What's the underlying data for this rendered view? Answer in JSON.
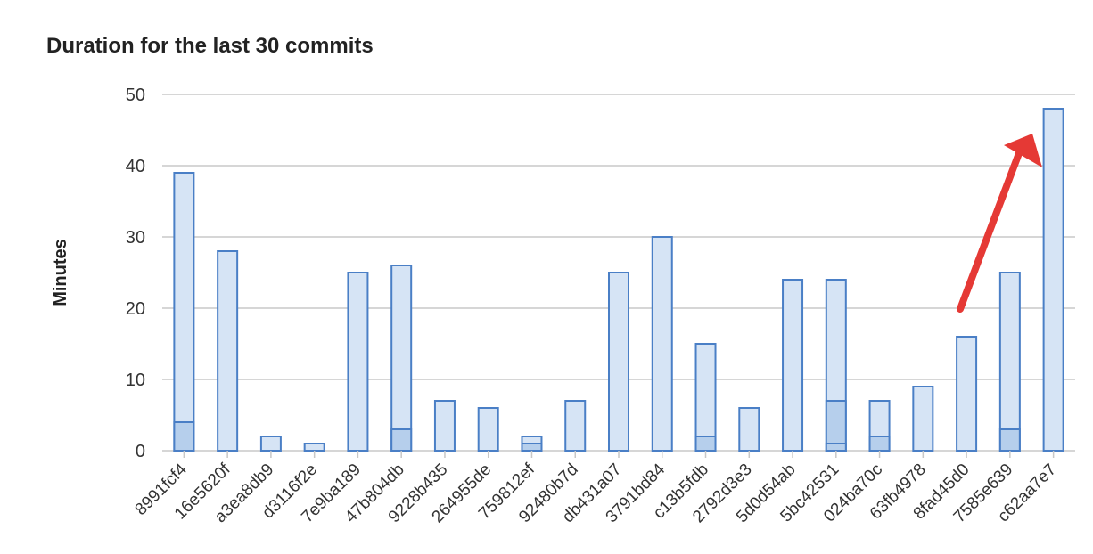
{
  "chart_data": {
    "type": "bar",
    "title": "Duration for the last 30 commits",
    "xlabel": "",
    "ylabel": "Minutes",
    "ylim": [
      0,
      50
    ],
    "yticks": [
      0,
      10,
      20,
      30,
      40,
      50
    ],
    "grid": true,
    "categories": [
      "8991fcf4",
      "16e5620f",
      "a3ea8db9",
      "d3116f2e",
      "7e9ba189",
      "47b804db",
      "9228b435",
      "264955de",
      "759812ef",
      "92480b7d",
      "db431a07",
      "3791bd84",
      "c13b5fdb",
      "2792d3e3",
      "5d0d54ab",
      "5bc42531",
      "024ba70c",
      "63fb4978",
      "8fad45d0",
      "7585e639",
      "c62aa7e7"
    ],
    "series": [
      {
        "values": [
          39,
          28,
          2,
          1,
          25,
          26,
          7,
          6,
          2,
          7,
          25,
          30,
          15,
          6,
          24,
          24,
          7,
          9,
          16,
          25,
          48
        ]
      },
      {
        "values": [
          4,
          0,
          0,
          0,
          0,
          3,
          0,
          0,
          1,
          0,
          0,
          0,
          2,
          0,
          0,
          7,
          2,
          0,
          0,
          3,
          0
        ]
      },
      {
        "values": [
          0,
          0,
          0,
          0,
          0,
          0,
          0,
          0,
          0,
          0,
          0,
          0,
          0,
          0,
          0,
          1,
          0,
          0,
          0,
          0,
          0
        ]
      }
    ],
    "colors": {
      "bar_fill": "#d6e4f5",
      "bar_fill_inner": "#b6cfec",
      "bar_stroke": "#4a7fc6",
      "grid": "#c8c8c8",
      "arrow": "#e53935"
    }
  }
}
